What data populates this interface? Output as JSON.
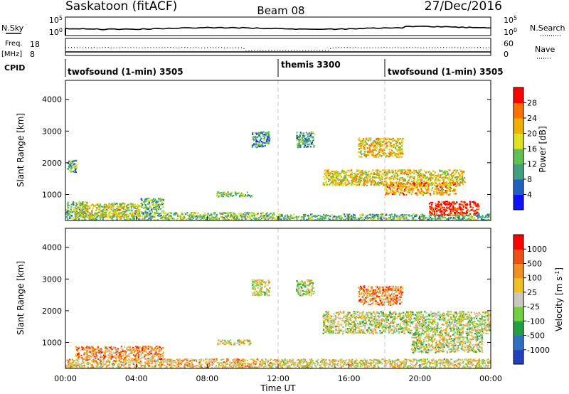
{
  "header": {
    "title_left": "Saskatoon (fitACF)",
    "title_center": "Beam 08",
    "title_right": "27/Dec/2016"
  },
  "top_panels": {
    "nsky_label": "N.Sky",
    "nsearch_label": "N.Search",
    "noise_ticks_left": [
      "10^5",
      "10^0"
    ],
    "noise_ticks_right": [
      "10^5",
      "10^0"
    ],
    "freq_label": "Freq.",
    "freq_unit": "[MHz]",
    "freq_ticks": [
      "18",
      "8"
    ],
    "nave_label": "Nave",
    "nave_ticks": [
      "60",
      "0"
    ],
    "cpid_label": "CPID",
    "cpid_segments": [
      {
        "label": "twofsound (1-min) 3505",
        "start_hour": 0
      },
      {
        "label": "themis 3300",
        "start_hour": 12
      },
      {
        "label": "twofsound (1-min) 3505",
        "start_hour": 18
      }
    ]
  },
  "chart_data": [
    {
      "type": "heatmap",
      "name": "power-panel",
      "ylabel": "Slant Range [km]",
      "xlim": [
        0,
        24
      ],
      "ylim": [
        180,
        4600
      ],
      "yticks": [
        1000,
        2000,
        3000,
        4000
      ],
      "colorbar_label": "Power [dB]",
      "colorbar_ticks": [
        "4",
        "8",
        "12",
        "16",
        "20",
        "24",
        "28"
      ],
      "colorbar_colors": [
        "#1010ff",
        "#2060c0",
        "#40a080",
        "#60c050",
        "#e0e020",
        "#f0b000",
        "#ff7000",
        "#ff0000"
      ],
      "regions": [
        {
          "x": [
            0.0,
            12.0
          ],
          "y": [
            180,
            450
          ],
          "level": 0.45
        },
        {
          "x": [
            0.0,
            1.2
          ],
          "y": [
            450,
            800
          ],
          "level": 0.4
        },
        {
          "x": [
            0.5,
            4.2
          ],
          "y": [
            300,
            750
          ],
          "level": 0.55
        },
        {
          "x": [
            4.2,
            5.5
          ],
          "y": [
            400,
            900
          ],
          "level": 0.4
        },
        {
          "x": [
            0.1,
            0.6
          ],
          "y": [
            1700,
            2100
          ],
          "level": 0.35
        },
        {
          "x": [
            8.5,
            10.5
          ],
          "y": [
            950,
            1100
          ],
          "level": 0.45
        },
        {
          "x": [
            10.5,
            11.5
          ],
          "y": [
            2500,
            3000
          ],
          "level": 0.3
        },
        {
          "x": [
            13.0,
            14.0
          ],
          "y": [
            2500,
            3000
          ],
          "level": 0.3
        },
        {
          "x": [
            14.5,
            22.5
          ],
          "y": [
            1300,
            1800
          ],
          "level": 0.6
        },
        {
          "x": [
            16.5,
            19.0
          ],
          "y": [
            2200,
            2800
          ],
          "level": 0.65
        },
        {
          "x": [
            18.0,
            22.0
          ],
          "y": [
            1000,
            1400
          ],
          "level": 0.7
        },
        {
          "x": [
            20.5,
            23.3
          ],
          "y": [
            350,
            800
          ],
          "level": 0.95
        },
        {
          "x": [
            12.0,
            24.0
          ],
          "y": [
            180,
            400
          ],
          "level": 0.4
        }
      ]
    },
    {
      "type": "heatmap",
      "name": "velocity-panel",
      "ylabel": "Slant Range [km]",
      "xlabel": "Time UT",
      "xlim": [
        0,
        24
      ],
      "ylim": [
        180,
        4600
      ],
      "xticks": [
        "00:00",
        "04:00",
        "08:00",
        "12:00",
        "16:00",
        "20:00",
        "00:00"
      ],
      "yticks": [
        1000,
        2000,
        3000,
        4000
      ],
      "colorbar_label": "Velocity [m s^-1]",
      "colorbar_ticks": [
        "1000",
        "500",
        "100",
        "25",
        "-25",
        "-100",
        "-500",
        "-1000"
      ],
      "colorbar_colors": [
        "#2040c0",
        "#3070c0",
        "#20a040",
        "#70d040",
        "#c8c8c0",
        "#f0c020",
        "#f09020",
        "#f05010",
        "#ff0000"
      ],
      "regions": [
        {
          "x": [
            0.0,
            12.0
          ],
          "y": [
            180,
            500
          ],
          "level": 0.62
        },
        {
          "x": [
            0.5,
            5.5
          ],
          "y": [
            500,
            900
          ],
          "level": 0.7
        },
        {
          "x": [
            8.5,
            10.5
          ],
          "y": [
            950,
            1100
          ],
          "level": 0.55
        },
        {
          "x": [
            10.5,
            11.5
          ],
          "y": [
            2500,
            3000
          ],
          "level": 0.5
        },
        {
          "x": [
            13.0,
            14.0
          ],
          "y": [
            2500,
            3000
          ],
          "level": 0.5
        },
        {
          "x": [
            14.5,
            24.0
          ],
          "y": [
            1300,
            2000
          ],
          "level": 0.5
        },
        {
          "x": [
            16.5,
            19.0
          ],
          "y": [
            2200,
            2800
          ],
          "level": 0.72
        },
        {
          "x": [
            19.5,
            23.5
          ],
          "y": [
            700,
            1300
          ],
          "level": 0.5
        },
        {
          "x": [
            12.0,
            24.0
          ],
          "y": [
            180,
            500
          ],
          "level": 0.55
        }
      ]
    }
  ]
}
